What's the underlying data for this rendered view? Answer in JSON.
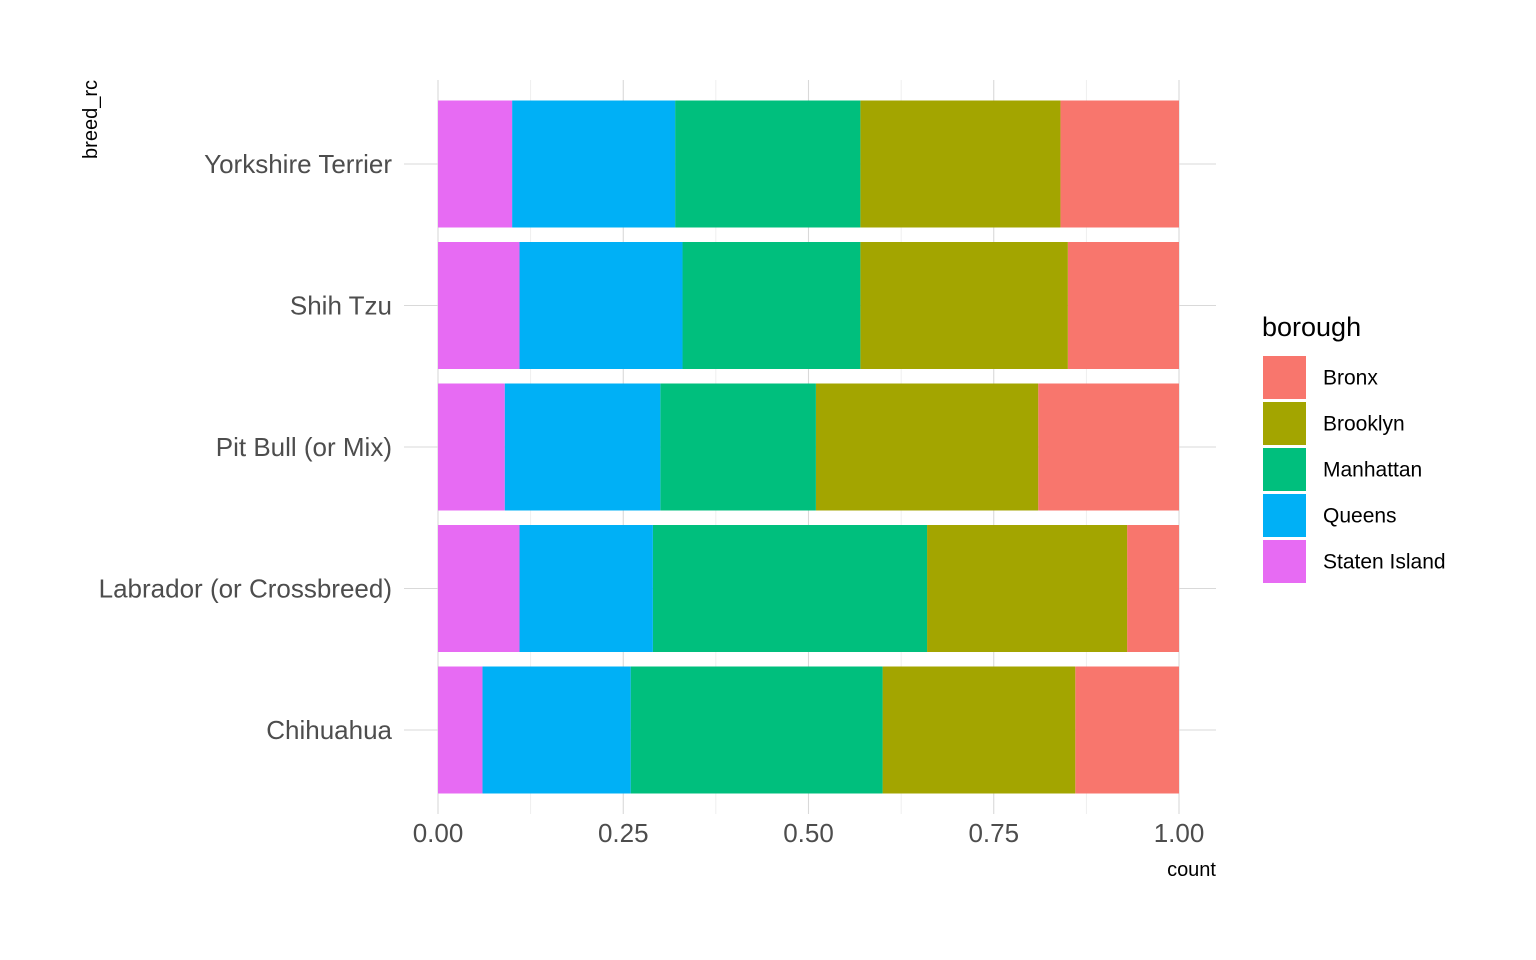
{
  "chart_data": {
    "type": "bar",
    "orientation": "horizontal",
    "stacked": "fill",
    "xlabel": "count",
    "ylabel": "breed_rc",
    "xlim": [
      0,
      1
    ],
    "x_ticks": [
      "0.00",
      "0.25",
      "0.50",
      "0.75",
      "1.00"
    ],
    "grid": true,
    "legend_position": "right",
    "legend_title": "borough",
    "categories": [
      "Chihuahua",
      "Labrador (or Crossbreed)",
      "Pit Bull (or Mix)",
      "Shih Tzu",
      "Yorkshire Terrier"
    ],
    "series": [
      {
        "name": "Bronx",
        "color": "#F8766D",
        "values": [
          0.14,
          0.07,
          0.19,
          0.15,
          0.16
        ]
      },
      {
        "name": "Brooklyn",
        "color": "#A3A500",
        "values": [
          0.26,
          0.27,
          0.3,
          0.28,
          0.27
        ]
      },
      {
        "name": "Manhattan",
        "color": "#00BF7D",
        "values": [
          0.34,
          0.37,
          0.21,
          0.24,
          0.25
        ]
      },
      {
        "name": "Queens",
        "color": "#00B0F6",
        "values": [
          0.2,
          0.18,
          0.21,
          0.22,
          0.22
        ]
      },
      {
        "name": "Staten Island",
        "color": "#E76BF3",
        "values": [
          0.06,
          0.11,
          0.09,
          0.11,
          0.1
        ]
      }
    ]
  }
}
